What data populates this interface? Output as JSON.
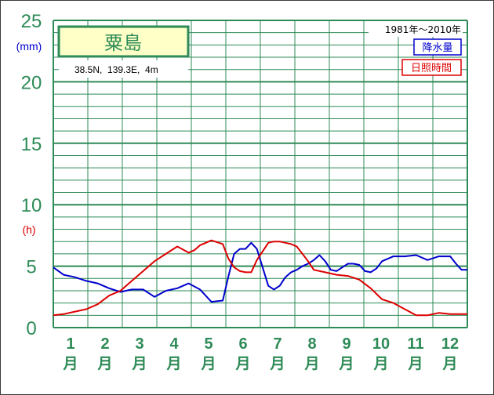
{
  "station": {
    "name": "粟島",
    "coords": "38.5N,  139.3E,  4m",
    "period": "1981年〜2010年"
  },
  "legend": {
    "precip_label": "降水量",
    "sun_label": "日照時間"
  },
  "units": {
    "left_top": "(mm)",
    "left_mid": "(h)"
  },
  "colors": {
    "grid": "#2e8b57",
    "precip": "#0000cc",
    "sun": "#dd0000",
    "title_bg": "#ffffc8",
    "axis_text": "#2e8b57"
  },
  "chart_data": {
    "type": "line",
    "ylim": [
      0,
      25
    ],
    "yticks": [
      "0",
      "5",
      "10",
      "15",
      "20",
      "25"
    ],
    "month_labels": [
      "1",
      "2",
      "3",
      "4",
      "5",
      "6",
      "7",
      "8",
      "9",
      "10",
      "11",
      "12"
    ],
    "month_suffix": "月",
    "x_unit": "day of year",
    "series": [
      {
        "name": "降水量",
        "color": "#0000cc",
        "x": [
          1,
          10,
          20,
          30,
          40,
          50,
          60,
          70,
          80,
          90,
          100,
          110,
          120,
          130,
          140,
          150,
          155,
          160,
          165,
          170,
          175,
          180,
          190,
          195,
          200,
          205,
          210,
          215,
          220,
          225,
          230,
          235,
          240,
          245,
          250,
          255,
          260,
          265,
          270,
          275,
          280,
          285,
          290,
          300,
          310,
          320,
          330,
          340,
          350,
          355,
          360,
          365
        ],
        "y": [
          4.9,
          4.3,
          4.1,
          3.8,
          3.6,
          3.2,
          2.9,
          3.1,
          3.1,
          2.5,
          3.0,
          3.2,
          3.6,
          3.1,
          2.1,
          2.2,
          4.2,
          6.0,
          6.4,
          6.4,
          6.9,
          6.4,
          3.4,
          3.1,
          3.4,
          4.1,
          4.5,
          4.7,
          5.0,
          5.2,
          5.5,
          5.9,
          5.4,
          4.7,
          4.6,
          4.9,
          5.2,
          5.2,
          5.1,
          4.6,
          4.5,
          4.8,
          5.4,
          5.8,
          5.8,
          5.9,
          5.5,
          5.8,
          5.8,
          5.2,
          4.7,
          4.7
        ]
      },
      {
        "name": "日照時間",
        "color": "#dd0000",
        "x": [
          1,
          10,
          20,
          30,
          40,
          50,
          60,
          70,
          80,
          90,
          100,
          110,
          120,
          125,
          130,
          140,
          150,
          155,
          160,
          165,
          170,
          175,
          180,
          190,
          195,
          200,
          205,
          210,
          215,
          220,
          225,
          230,
          240,
          250,
          260,
          270,
          280,
          290,
          300,
          310,
          320,
          330,
          340,
          350,
          360,
          365
        ],
        "y": [
          1.0,
          1.1,
          1.3,
          1.5,
          1.9,
          2.6,
          3.0,
          3.8,
          4.6,
          5.4,
          6.0,
          6.6,
          6.1,
          6.3,
          6.7,
          7.1,
          6.8,
          5.6,
          4.9,
          4.6,
          4.5,
          4.5,
          5.5,
          6.9,
          7.0,
          7.0,
          6.9,
          6.8,
          6.6,
          6.0,
          5.4,
          4.7,
          4.5,
          4.3,
          4.2,
          3.9,
          3.2,
          2.3,
          2.0,
          1.5,
          1.0,
          1.0,
          1.2,
          1.1,
          1.1,
          1.1
        ]
      }
    ]
  }
}
